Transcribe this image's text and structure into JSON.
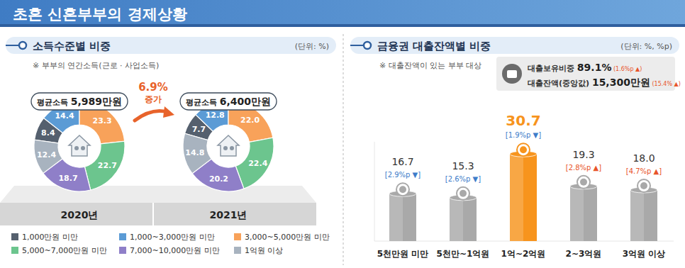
{
  "title": "초혼 신혼부부의 경제상황",
  "chart_data": [
    {
      "type": "pie",
      "title": "소득수준별 비중",
      "unit": "(단위: %)",
      "subtitle": "※ 부부의 연간소득(근로 · 사업소득)",
      "categories": [
        "1,000만원 미만",
        "1,000~3,000만원 미만",
        "3,000~5,000만원 미만",
        "5,000~7,000만원 미만",
        "7,000~10,000만원 미만",
        "1억원 이상"
      ],
      "colors": [
        "#55606e",
        "#5b9bd5",
        "#f8a25a",
        "#6cc58e",
        "#8f7fc8",
        "#a8b3bf"
      ],
      "legend": "bottom",
      "data_labels": true,
      "series": [
        {
          "name": "2020년",
          "center_label": "평균소득",
          "center_value": "5,989만원",
          "values": [
            8.4,
            14.4,
            23.3,
            22.7,
            18.7,
            12.4
          ],
          "value_labels": [
            "8.4",
            "14.4",
            "23.3",
            "22.7",
            "18.7",
            "12.4"
          ]
        },
        {
          "name": "2021년",
          "center_label": "평균소득",
          "center_value": "6,400만원",
          "values": [
            7.7,
            12.8,
            22.0,
            22.4,
            20.2,
            14.8
          ],
          "value_labels": [
            "7.7",
            "12.8",
            "22.0",
            "22.4",
            "20.2",
            "14.8"
          ]
        }
      ],
      "annotation": {
        "label": "6.9%",
        "text": "증가"
      }
    },
    {
      "type": "bar",
      "title": "금융권 대출잔액별 비중",
      "unit": "(단위: %, %p)",
      "subtitle": "※ 대출잔액이 있는 부부 대상",
      "categories": [
        "5천만원 미만",
        "5천만~1억원",
        "1억~2억원",
        "2~3억원",
        "3억원 이상"
      ],
      "values": [
        16.7,
        15.3,
        30.7,
        19.3,
        18.0
      ],
      "value_labels": [
        "16.7",
        "15.3",
        "30.7",
        "19.3",
        "18.0"
      ],
      "changes": [
        -2.9,
        -2.6,
        -1.9,
        2.8,
        4.7
      ],
      "change_labels": [
        "[2.9%p ▼]",
        "[2.6%p ▼]",
        "[1.9%p ▼]",
        "[2.8%p ▲]",
        "[4.7%p ▲]"
      ],
      "colors": [
        "#a9a9a9",
        "#a9a9a9",
        "#f7941d",
        "#a9a9a9",
        "#a9a9a9"
      ],
      "ylim": [
        0,
        35
      ],
      "data_labels": true,
      "tick_labels": "x",
      "summary": [
        {
          "label": "대출보유비중",
          "value": "89.1%",
          "change": "(1.6%p ▲)"
        },
        {
          "label": "대출잔액(중앙값)",
          "value": "15,300만원",
          "change": "(15.4% ▲)"
        }
      ]
    }
  ]
}
